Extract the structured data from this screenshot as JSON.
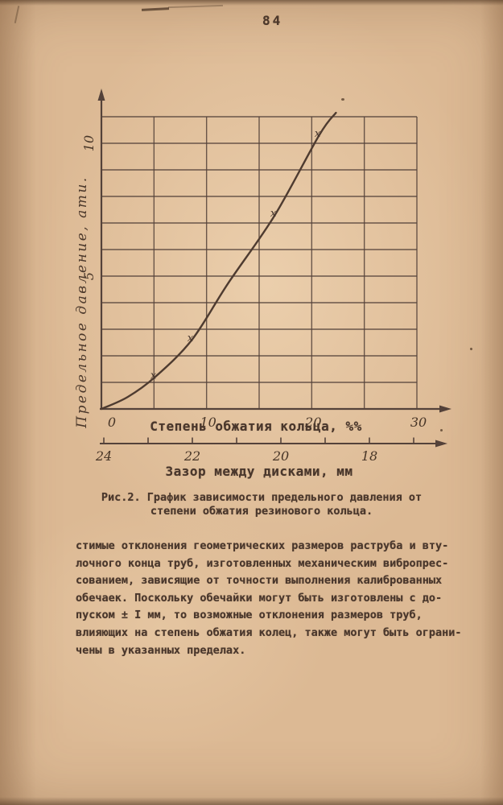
{
  "page": {
    "number": "84"
  },
  "figure": {
    "y_axis_label": "Предельное давление, ати.",
    "x_axis_label": "Степень обжатия кольца, %%",
    "x2_axis_label": "Зазор между дисками, мм"
  },
  "chart_data": {
    "type": "line",
    "title": "Рис.2. График зависимости предельного давления от степени обжатия резинового кольца.",
    "xlabel": "Степень обжатия кольца, %%",
    "ylabel": "Предельное давление, ати.",
    "x2label": "Зазор между дисками, мм",
    "xlim": [
      0,
      30
    ],
    "ylim": [
      0,
      11
    ],
    "x_ticks": [
      0,
      10,
      20,
      30
    ],
    "y_ticks": [
      0,
      5,
      10
    ],
    "x2_ticks": [
      24,
      22,
      20,
      18
    ],
    "grid": true,
    "grid_step_x": 5,
    "grid_step_y": 1,
    "legend": "none",
    "series": [
      {
        "name": "предельное давление",
        "x": [
          0,
          2.5,
          5.1,
          8.6,
          12,
          16.5,
          20.7,
          22.3
        ],
        "y": [
          0,
          0.45,
          1.2,
          2.6,
          4.7,
          7.3,
          10.3,
          11.15
        ]
      }
    ],
    "marker_symbol": "x",
    "marker_points": {
      "x": [
        5.1,
        8.6,
        16.5,
        20.7
      ],
      "y": [
        1.2,
        2.6,
        7.3,
        10.3
      ]
    }
  },
  "caption": {
    "lines": [
      "Рис.2. График зависимости предельного давления от",
      "степени обжатия резинового кольца."
    ]
  },
  "body": {
    "lines": [
      "стимые отклонения геометрических размеров раструба и вту-",
      "лочного конца труб, изготовленных механическим вибропрес-",
      "сованием, зависящие от точности выполнения калиброванных",
      "обечаек. Поскольку обечайки могут быть изготовлены с до-",
      "пуском ± I мм, то возможные отклонения размеров труб,",
      "влияющих на степень обжатия колец, также могут быть ограни-",
      "чены в указанных пределах."
    ]
  },
  "colors": {
    "paper": "#dcb994",
    "ink": "#4a372c",
    "chart_line": "#54423a",
    "numeral_ink": "#473527"
  }
}
